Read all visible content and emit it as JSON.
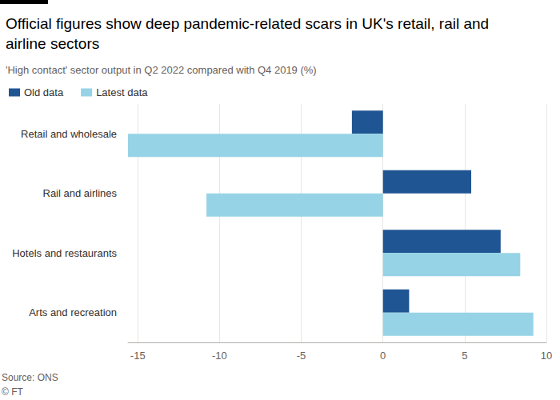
{
  "chart_data": {
    "type": "bar",
    "orientation": "horizontal",
    "title": "Official figures show deep pandemic-related scars in UK's retail, rail and airline sectors",
    "subtitle": "'High contact' sector output in Q2 2022 compared with Q4 2019 (%)",
    "source": "Source: ONS",
    "credit": "© FT",
    "categories": [
      "Retail and wholesale",
      "Rail and airlines",
      "Hotels and restaurants",
      "Arts and recreation"
    ],
    "series": [
      {
        "name": "Old data",
        "color": "#1f5592",
        "values": [
          -1.9,
          5.4,
          7.2,
          1.6
        ]
      },
      {
        "name": "Latest data",
        "color": "#96d3e6",
        "values": [
          -15.6,
          -10.8,
          8.4,
          9.2
        ]
      }
    ],
    "xlim": [
      -15.6,
      10
    ],
    "xticks": [
      -15,
      -10,
      -5,
      0,
      5,
      10
    ],
    "grid": true,
    "legend": "top-left"
  }
}
